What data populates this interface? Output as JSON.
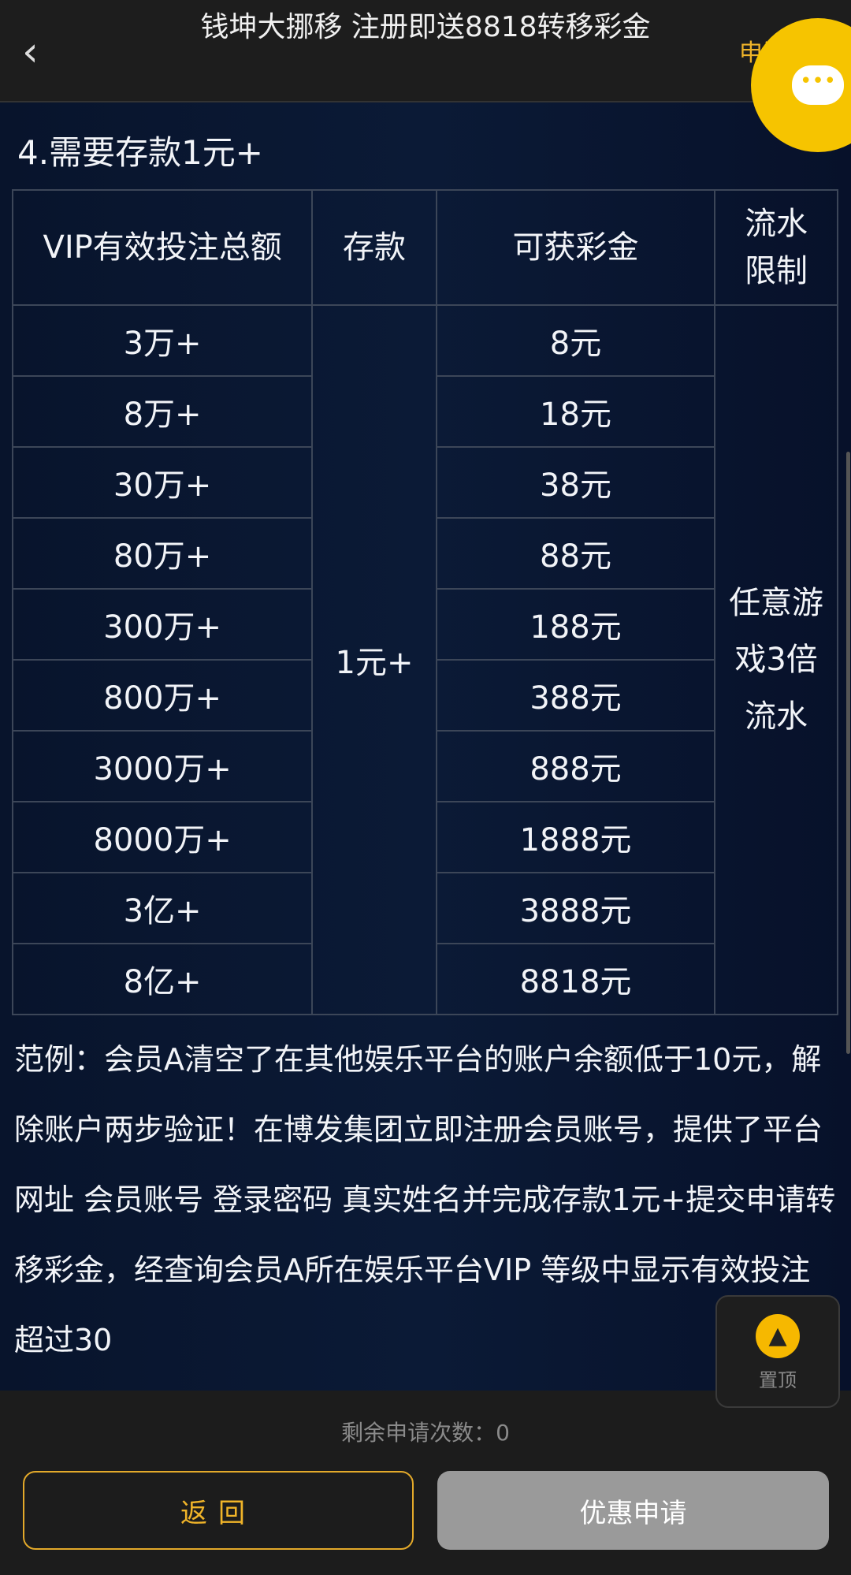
{
  "header": {
    "title": "钱坤大挪移 注册即送8818转移彩金",
    "apply_link": "申请"
  },
  "section_title": "4.需要存款1元+",
  "table": {
    "headers": [
      "VIP有效投注总额",
      "存款",
      "可获彩金",
      "流水限制"
    ],
    "deposit": "1元+",
    "turnover": "任意游戏3倍流水",
    "rows": [
      [
        "3万+",
        "8元"
      ],
      [
        "8万+",
        "18元"
      ],
      [
        "30万+",
        "38元"
      ],
      [
        "80万+",
        "88元"
      ],
      [
        "300万+",
        "188元"
      ],
      [
        "800万+",
        "388元"
      ],
      [
        "3000万+",
        "888元"
      ],
      [
        "8000万+",
        "1888元"
      ],
      [
        "3亿+",
        "3888元"
      ],
      [
        "8亿+",
        "8818元"
      ]
    ]
  },
  "example": "范例：会员A清空了在其他娱乐平台的账户余额低于10元，解除账户两步验证！在博发集团立即注册会员账号，提供了平台网址 会员账号 登录密码 真实姓名并完成存款1元+提交申请转移彩金，经查询会员A所在娱乐平台VIP 等级中显示有效投注超过30",
  "footer": {
    "remaining": "剩余申请次数：0",
    "back": "返回",
    "apply": "优惠申请"
  },
  "floating": {
    "top_label": "置顶"
  },
  "colors": {
    "accent": "#f6c400",
    "bg": "#0b1a36"
  }
}
